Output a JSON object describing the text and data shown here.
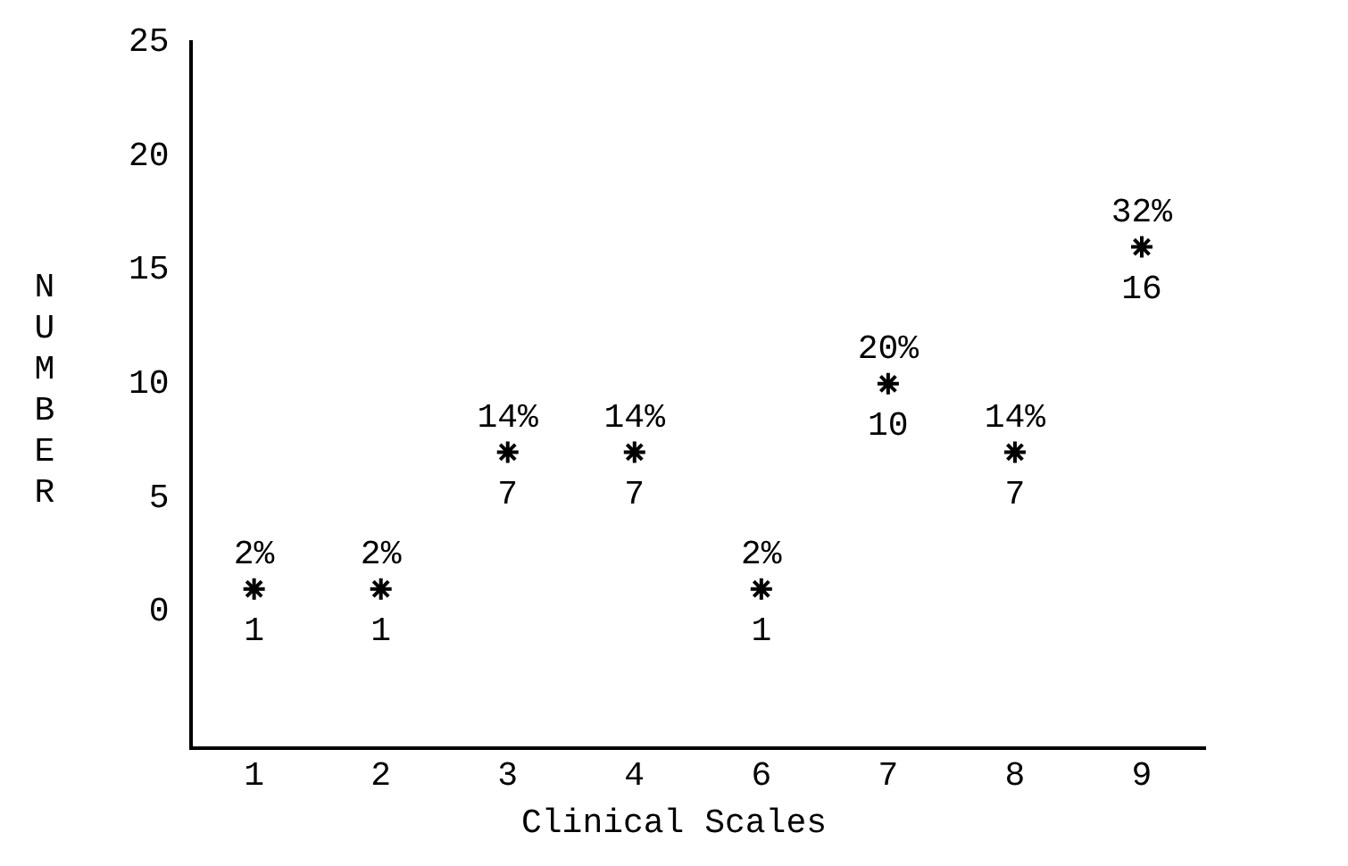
{
  "chart_data": {
    "type": "scatter",
    "xlabel": "Clinical Scales",
    "ylabel": "NUMBER",
    "categories": [
      "1",
      "2",
      "3",
      "4",
      "6",
      "7",
      "8",
      "9"
    ],
    "values": [
      1,
      1,
      7,
      7,
      1,
      10,
      7,
      16
    ],
    "color": "#000000",
    "marker": "cross",
    "data_labels": true,
    "annotations": [
      {
        "text": "2%",
        "x": "1",
        "y": 1
      },
      {
        "text": "2%",
        "x": "2",
        "y": 1
      },
      {
        "text": "14%",
        "x": "3",
        "y": 7
      },
      {
        "text": "14%",
        "x": "4",
        "y": 7
      },
      {
        "text": "2%",
        "x": "6",
        "y": 1
      },
      {
        "text": "20%",
        "x": "7",
        "y": 10
      },
      {
        "text": "14%",
        "x": "8",
        "y": 7
      },
      {
        "text": "32%",
        "x": "9",
        "y": 16
      }
    ],
    "ylim": [
      -6,
      25
    ],
    "yticks": [
      0,
      5,
      10,
      15,
      20,
      25
    ],
    "grid": false,
    "legend": false
  }
}
